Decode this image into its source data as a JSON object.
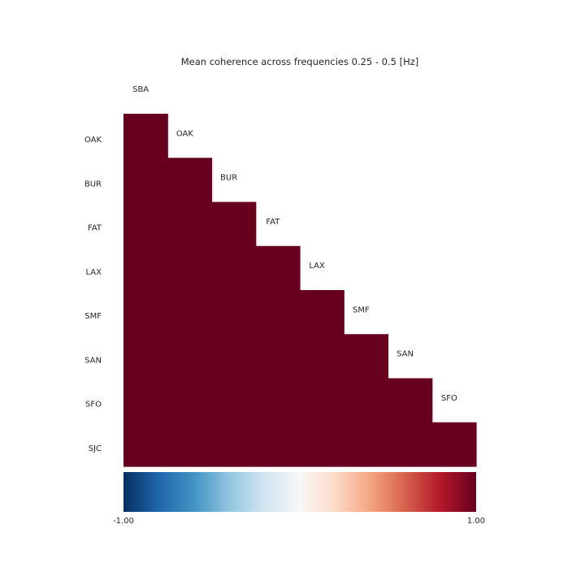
{
  "chart_data": {
    "type": "heatmap",
    "title": "Mean coherence across frequencies 0.25 - 0.5 [Hz]",
    "column_labels": [
      "SBA",
      "OAK",
      "BUR",
      "FAT",
      "LAX",
      "SMF",
      "SAN",
      "SFO"
    ],
    "row_labels": [
      "OAK",
      "BUR",
      "FAT",
      "LAX",
      "SMF",
      "SAN",
      "SFO",
      "SJC"
    ],
    "mask": "lower-triangle",
    "values": [
      [
        1.0
      ],
      [
        1.0,
        1.0
      ],
      [
        1.0,
        1.0,
        1.0
      ],
      [
        1.0,
        1.0,
        1.0,
        1.0
      ],
      [
        1.0,
        1.0,
        1.0,
        1.0,
        1.0
      ],
      [
        1.0,
        1.0,
        1.0,
        1.0,
        1.0,
        1.0
      ],
      [
        1.0,
        1.0,
        1.0,
        1.0,
        1.0,
        1.0,
        1.0
      ],
      [
        1.0,
        1.0,
        1.0,
        1.0,
        1.0,
        1.0,
        1.0,
        1.0
      ]
    ],
    "colorbar": {
      "colormap": "RdBu_r",
      "range": [
        -1.0,
        1.0
      ],
      "min_label": "-1.00",
      "max_label": "1.00",
      "orientation": "horizontal"
    }
  },
  "colors": {
    "text": "#262626",
    "background": "#ffffff"
  }
}
